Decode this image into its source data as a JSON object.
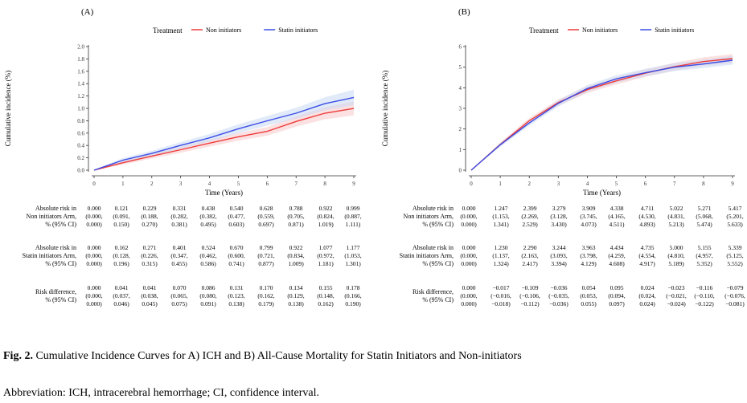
{
  "caption": {
    "label": "Fig. 2.",
    "text": "Cumulative Incidence Curves for A) ICH and B) All-Cause Mortality for Statin Initiators and Non-initiators"
  },
  "abbreviation": "Abbreviation: ICH, intracerebral hemorrhage; CI, confidence interval.",
  "legend": {
    "title": "Treatment",
    "items": [
      {
        "label": "Non initiators",
        "color": "#ee3b3b"
      },
      {
        "label": "Statin initiators",
        "color": "#3a4ce6"
      }
    ]
  },
  "colors": {
    "non": "#ee3b3b",
    "statin": "#3a4ce6",
    "non_band": "#f7c9c9",
    "statin_band": "#c9d8f4"
  },
  "chart_data": [
    {
      "type": "line",
      "panel_label": "(A)",
      "xlabel": "Time (Years)",
      "ylabel": "Cumulative incidence (%)",
      "x": [
        0,
        1,
        2,
        3,
        4,
        5,
        6,
        7,
        8,
        9
      ],
      "xlim": [
        0,
        9
      ],
      "ylim": [
        0,
        2.0
      ],
      "yticks": [
        "0.0",
        "0.2",
        "0.4",
        "0.6",
        "0.8",
        "1.0",
        "1.2",
        "1.4",
        "1.6",
        "1.8",
        "2.0"
      ],
      "grid": false,
      "legend_position": "top",
      "series": [
        {
          "name": "Non initiators",
          "values": [
            0.0,
            0.121,
            0.229,
            0.331,
            0.438,
            0.54,
            0.628,
            0.788,
            0.922,
            0.999
          ],
          "lower": [
            0.0,
            0.091,
            0.188,
            0.282,
            0.382,
            0.477,
            0.559,
            0.705,
            0.824,
            0.887
          ],
          "upper": [
            0.0,
            0.15,
            0.27,
            0.381,
            0.495,
            0.603,
            0.697,
            0.871,
            1.019,
            1.111
          ]
        },
        {
          "name": "Statin initiators",
          "values": [
            0.0,
            0.162,
            0.271,
            0.401,
            0.524,
            0.67,
            0.799,
            0.922,
            1.077,
            1.177
          ],
          "lower": [
            0.0,
            0.128,
            0.226,
            0.347,
            0.462,
            0.6,
            0.721,
            0.834,
            0.972,
            1.053
          ],
          "upper": [
            0.0,
            0.196,
            0.315,
            0.455,
            0.586,
            0.741,
            0.877,
            1.009,
            1.181,
            1.301
          ]
        }
      ],
      "table": {
        "rows": [
          {
            "label": [
              "Absolute risk in",
              "Non initiators Arm,",
              "% (95% CI)"
            ],
            "values": [
              "0.000",
              "0.121",
              "0.229",
              "0.331",
              "0.438",
              "0.540",
              "0.628",
              "0.788",
              "0.922",
              "0.999"
            ],
            "lower": [
              "(0.000,",
              "(0.091,",
              "(0.188,",
              "(0.282,",
              "(0.382,",
              "(0.477,",
              "(0.559,",
              "(0.705,",
              "(0.824,",
              "(0.887,"
            ],
            "upper": [
              "0.000)",
              "0.150)",
              "0.270)",
              "0.381)",
              "0.495)",
              "0.603)",
              "0.697)",
              "0.871)",
              "1.019)",
              "1.111)"
            ]
          },
          {
            "label": [
              "Absolute risk in",
              "Statin initiators Arm,",
              "% (95% CI)"
            ],
            "values": [
              "0.000",
              "0.162",
              "0.271",
              "0.401",
              "0.524",
              "0.670",
              "0.799",
              "0.922",
              "1.077",
              "1.177"
            ],
            "lower": [
              "(0.000,",
              "(0.128,",
              "(0.226,",
              "(0.347,",
              "(0.462,",
              "(0.600,",
              "(0.721,",
              "(0.834,",
              "(0.972,",
              "(1.053,"
            ],
            "upper": [
              "0.000)",
              "0.196)",
              "0.315)",
              "0.455)",
              "0.586)",
              "0.741)",
              "0.877)",
              "1.009)",
              "1.181)",
              "1.301)"
            ]
          },
          {
            "label": [
              "Risk difference,",
              "% (95% CI)"
            ],
            "values": [
              "0.000",
              "0.041",
              "0.041",
              "0.070",
              "0.086",
              "0.131",
              "0.170",
              "0.134",
              "0.155",
              "0.178"
            ],
            "lower": [
              "(0.000,",
              "(0.037,",
              "(0.038,",
              "(0.065,",
              "(0.080,",
              "(0.123,",
              "(0.162,",
              "(0.129,",
              "(0.148,",
              "(0.166,"
            ],
            "upper": [
              "0.000)",
              "0.046)",
              "0.045)",
              "0.075)",
              "0.091)",
              "0.138)",
              "0.179)",
              "0.138)",
              "0.162)",
              "0.190)"
            ]
          }
        ]
      }
    },
    {
      "type": "line",
      "panel_label": "(B)",
      "xlabel": "Time (Years)",
      "ylabel": "Cumulative incidence (%)",
      "x": [
        0,
        1,
        2,
        3,
        4,
        5,
        6,
        7,
        8,
        9
      ],
      "xlim": [
        0,
        9
      ],
      "ylim": [
        0,
        6
      ],
      "yticks": [
        "0",
        "1",
        "2",
        "3",
        "4",
        "5",
        "6"
      ],
      "grid": false,
      "legend_position": "top",
      "series": [
        {
          "name": "Non initiators",
          "values": [
            0.0,
            1.247,
            2.399,
            3.279,
            3.909,
            4.338,
            4.711,
            5.022,
            5.271,
            5.417
          ],
          "lower": [
            0.0,
            1.153,
            2.269,
            3.128,
            3.745,
            4.165,
            4.53,
            4.831,
            5.068,
            5.201
          ],
          "upper": [
            0.0,
            1.341,
            2.529,
            3.43,
            4.073,
            4.511,
            4.893,
            5.213,
            5.474,
            5.633
          ]
        },
        {
          "name": "Statin initiators",
          "values": [
            0.0,
            1.23,
            2.29,
            3.244,
            3.963,
            4.434,
            4.735,
            5.0,
            5.155,
            5.339
          ],
          "lower": [
            0.0,
            1.137,
            2.163,
            3.093,
            3.798,
            4.259,
            4.554,
            4.81,
            4.957,
            5.125
          ],
          "upper": [
            0.0,
            1.324,
            2.417,
            3.394,
            4.129,
            4.608,
            4.917,
            5.189,
            5.352,
            5.552
          ]
        }
      ],
      "table": {
        "rows": [
          {
            "label": [
              "Absolute risk in",
              "Non initiators Arm,",
              "% (95% CI)"
            ],
            "values": [
              "0.000",
              "1.247",
              "2.399",
              "3.279",
              "3.909",
              "4.338",
              "4.711",
              "5.022",
              "5.271",
              "5.417"
            ],
            "lower": [
              "(0.000,",
              "(1.153,",
              "(2.269,",
              "(3.128,",
              "(3.745,",
              "(4.165,",
              "(4.530,",
              "(4.831,",
              "(5.068,",
              "(5.201,"
            ],
            "upper": [
              "0.000)",
              "1.341)",
              "2.529)",
              "3.430)",
              "4.073)",
              "4.511)",
              "4.893)",
              "5.213)",
              "5.474)",
              "5.633)"
            ]
          },
          {
            "label": [
              "Absolute risk in",
              "Statin initiators Arm,",
              "% (95% CI)"
            ],
            "values": [
              "0.000",
              "1.230",
              "2.290",
              "3.244",
              "3.963",
              "4.434",
              "4.735",
              "5.000",
              "5.155",
              "5.339"
            ],
            "lower": [
              "(0.000,",
              "(1.137,",
              "(2.163,",
              "(3.093,",
              "(3.798,",
              "(4.259,",
              "(4.554,",
              "(4.810,",
              "(4.957,",
              "(5.125,"
            ],
            "upper": [
              "0.000)",
              "1.324)",
              "2.417)",
              "3.394)",
              "4.129)",
              "4.608)",
              "4.917)",
              "5.189)",
              "5.352)",
              "5.552)"
            ]
          },
          {
            "label": [
              "Risk difference,",
              "% (95% CI)"
            ],
            "values": [
              "0.000",
              "−0.017",
              "−0.109",
              "−0.036",
              "0.054",
              "0.095",
              "0.024",
              "−0.023",
              "−0.116",
              "−0.079"
            ],
            "lower": [
              "(0.000,",
              "(−0.016,",
              "(−0.106,",
              "(−0.035,",
              "(0.053,",
              "(0.094,",
              "(0.024,",
              "(−0.021,",
              "(−0.110,",
              "(−0.076,"
            ],
            "upper": [
              "0.000)",
              "−0.018)",
              "−0.112)",
              "−0.036)",
              "0.055)",
              "0.097)",
              "0.024)",
              "−0.024)",
              "−0.122)",
              "−0.081)"
            ]
          }
        ]
      }
    }
  ]
}
